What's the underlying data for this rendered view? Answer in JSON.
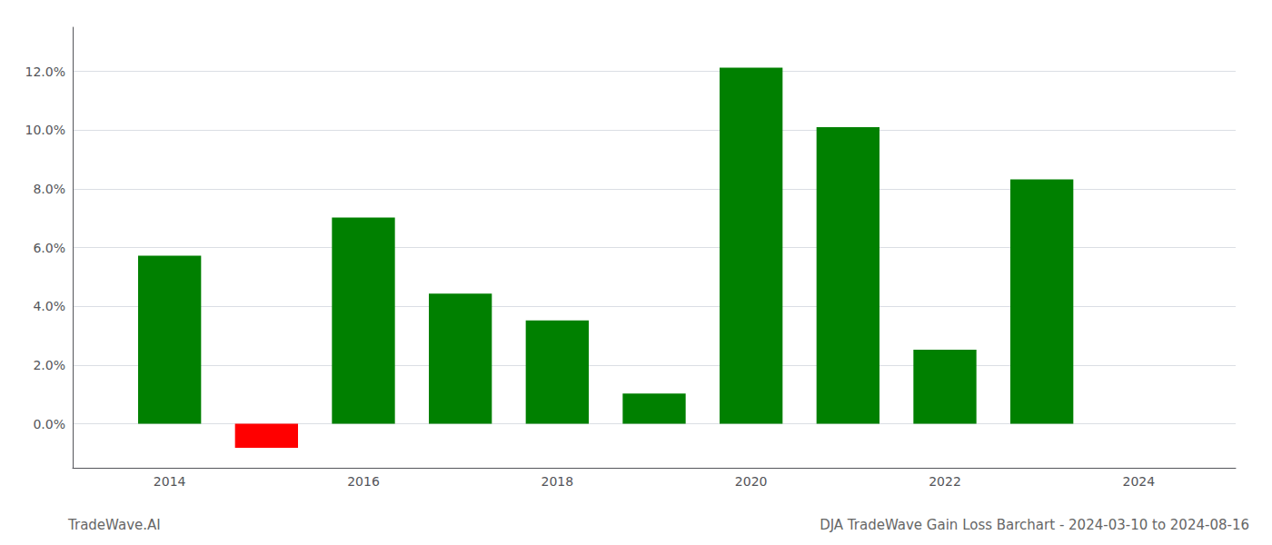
{
  "chart_data": {
    "type": "bar",
    "title": "DJA TradeWave Gain Loss Barchart - 2024-03-10 to 2024-08-16",
    "annotations": [
      "TradeWave.AI"
    ],
    "x": [
      2014,
      2015,
      2016,
      2017,
      2018,
      2019,
      2020,
      2021,
      2022,
      2023
    ],
    "values": [
      5.72,
      -0.82,
      7.02,
      4.43,
      3.52,
      1.03,
      12.12,
      10.1,
      2.52,
      8.32
    ],
    "colors": [
      "#008000",
      "#ff0000",
      "#008000",
      "#008000",
      "#008000",
      "#008000",
      "#008000",
      "#008000",
      "#008000",
      "#008000"
    ],
    "xlim": [
      2013.0,
      2025.0
    ],
    "ylim": [
      -1.5,
      13.5
    ],
    "xticks": [
      2014,
      2016,
      2018,
      2020,
      2022,
      2024
    ],
    "yticks": [
      {
        "value": 0.0,
        "label": "0.0%"
      },
      {
        "value": 2.0,
        "label": "2.0%"
      },
      {
        "value": 4.0,
        "label": "4.0%"
      },
      {
        "value": 6.0,
        "label": "6.0%"
      },
      {
        "value": 8.0,
        "label": "8.0%"
      },
      {
        "value": 10.0,
        "label": "10.0%"
      },
      {
        "value": 12.0,
        "label": "12.0%"
      }
    ],
    "grid": true
  }
}
